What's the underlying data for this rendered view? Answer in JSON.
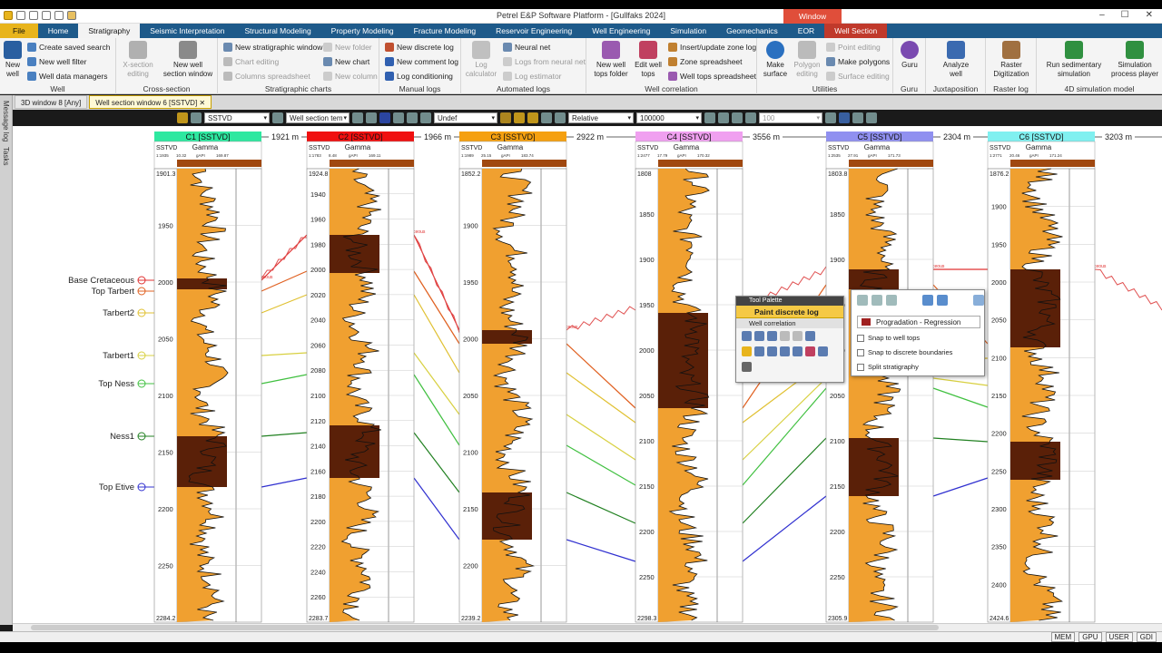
{
  "window": {
    "title": "Petrel E&P Software Platform - [Gullfaks 2024]",
    "context_tab": "Window"
  },
  "tabs": [
    "File",
    "Home",
    "Stratigraphy",
    "Seismic Interpretation",
    "Structural Modeling",
    "Property Modeling",
    "Fracture Modeling",
    "Reservoir Engineering",
    "Well Engineering",
    "Simulation",
    "Geomechanics",
    "EOR",
    "Well Section"
  ],
  "ribbon": {
    "well": {
      "label": "Well",
      "new_well": "New\nwell",
      "create_saved_search": "Create saved search",
      "new_well_filter": "New well filter",
      "well_data_managers": "Well data managers"
    },
    "cross_section": {
      "label": "Cross-section",
      "x_section_editing": "X-section\nediting",
      "new_well_section_window": "New well\nsection window"
    },
    "strat_charts": {
      "label": "Stratigraphic charts",
      "new_strat_window": "New stratigraphic window",
      "chart_editing": "Chart editing",
      "columns_spreadsheet": "Columns spreadsheet",
      "new_folder": "New folder",
      "new_chart": "New chart",
      "new_column": "New column"
    },
    "manual_logs": {
      "label": "Manual logs",
      "new_discrete_log": "New discrete log",
      "new_comment_log": "New comment log",
      "log_conditioning": "Log conditioning"
    },
    "automated_logs": {
      "label": "Automated logs",
      "log_calculator": "Log\ncalculator",
      "neural_net": "Neural net",
      "logs_from_neural_net": "Logs from neural net",
      "log_estimator": "Log estimator"
    },
    "well_correlation": {
      "label": "Well correlation",
      "new_well_tops_folder": "New well\ntops folder",
      "edit_well_tops": "Edit well\ntops",
      "insert_update_zone_log": "Insert/update zone log",
      "zone_spreadsheet": "Zone spreadsheet",
      "well_tops_spreadsheet": "Well tops spreadsheet"
    },
    "utilities": {
      "label": "Utilities",
      "make_surface": "Make\nsurface",
      "polygon_editing": "Polygon\nediting",
      "point_editing": "Point editing",
      "make_polygons": "Make polygons",
      "surface_editing": "Surface editing"
    },
    "guru": {
      "label": "Guru",
      "guru": "Guru"
    },
    "juxtaposition": {
      "label": "Juxtaposition",
      "analyze_well": "Analyze\nwell"
    },
    "raster_log": {
      "label": "Raster log",
      "raster_digitization": "Raster\nDigitization"
    },
    "sim4d": {
      "label": "4D simulation model",
      "run_sed_sim": "Run sedimentary\nsimulation",
      "sim_process_player": "Simulation\nprocess player"
    }
  },
  "doc_tabs": [
    "3D window 8 [Any]",
    "Well section window 6 [SSTVD]"
  ],
  "left_pane": [
    "Message log",
    "Tasks"
  ],
  "toolbar": {
    "depth_mode": "SSTVD",
    "template": "Well section tem",
    "undef": "Undef",
    "relative": "Relative",
    "scale": "100000",
    "zoom": "100"
  },
  "wells": [
    {
      "name": "C1 [SSTVD]",
      "color": "#2ee8a0",
      "top": "1901.3",
      "bottom": "2284.2",
      "ticks": [
        "1950",
        "2000",
        "2050",
        "2100",
        "2150",
        "2200",
        "2250"
      ],
      "dist": "1921 m",
      "hdr": [
        "1:1935",
        "10.32",
        "gAPI",
        "169.87"
      ]
    },
    {
      "name": "C2 [SSTVD]",
      "color": "#f01010",
      "top": "1924.8",
      "bottom": "2283.7",
      "ticks": [
        "1940",
        "1960",
        "1980",
        "2000",
        "2020",
        "2040",
        "2060",
        "2080",
        "2100",
        "2120",
        "2140",
        "2160",
        "2180",
        "2200",
        "2220",
        "2240",
        "2260"
      ],
      "dist": "1966 m",
      "hdr": [
        "1:1783",
        "8.48",
        "gAPI",
        "169.11"
      ]
    },
    {
      "name": "C3 [SSTVD]",
      "color": "#f5a010",
      "top": "1852.2",
      "bottom": "2239.2",
      "ticks": [
        "1900",
        "1950",
        "2000",
        "2050",
        "2100",
        "2150",
        "2200"
      ],
      "dist": "2922 m",
      "hdr": [
        "1:1989",
        "25.15",
        "gAPI",
        "183.74"
      ]
    },
    {
      "name": "C4 [SSTVD]",
      "color": "#f0a0f0",
      "top": "1808",
      "bottom": "2298.3",
      "ticks": [
        "1850",
        "1900",
        "1950",
        "2000",
        "2050",
        "2100",
        "2150",
        "2200",
        "2250"
      ],
      "dist": "3556 m",
      "hdr": [
        "1:2477",
        "17.79",
        "gAPI",
        "170.32"
      ]
    },
    {
      "name": "C5 [SSTVD]",
      "color": "#9090f0",
      "top": "1803.8",
      "bottom": "2305.9",
      "ticks": [
        "1850",
        "1900",
        "1950",
        "2000",
        "2050",
        "2100",
        "2150",
        "2200",
        "2250"
      ],
      "dist": "2304 m",
      "hdr": [
        "1:2535",
        "27.91",
        "gAPI",
        "171.73"
      ]
    },
    {
      "name": "C6 [SSTVD]",
      "color": "#80f0f0",
      "top": "1876.2",
      "bottom": "2424.6",
      "ticks": [
        "1900",
        "1950",
        "2000",
        "2050",
        "2100",
        "2150",
        "2200",
        "2250",
        "2300",
        "2350",
        "2400"
      ],
      "dist": "3203 m",
      "hdr": [
        "1:2771",
        "20.46",
        "gAPI",
        "171.24"
      ]
    }
  ],
  "track_labels": {
    "depth": "SSTVD",
    "gamma": "Gamma"
  },
  "horizons": [
    {
      "name": "Base Cretaceous",
      "color": "#e03030"
    },
    {
      "name": "Top Tarbert",
      "color": "#e06020"
    },
    {
      "name": "Tarbert2",
      "color": "#e0c030"
    },
    {
      "name": "Tarbert1",
      "color": "#d8d040"
    },
    {
      "name": "Top Ness",
      "color": "#40c040"
    },
    {
      "name": "Ness1",
      "color": "#208020"
    },
    {
      "name": "Top Etive",
      "color": "#3030d0"
    }
  ],
  "tool_palette": {
    "title": "Tool Palette",
    "tool": "Paint discrete log",
    "section": "Well correlation"
  },
  "popup": {
    "mode": "Progradation - Regression",
    "snap_well_tops": "Snap to well tops",
    "snap_discrete": "Snap to discrete boundaries",
    "split_strat": "Split stratigraphy"
  },
  "status": [
    "MEM",
    "GPU",
    "USER",
    "GDI"
  ]
}
